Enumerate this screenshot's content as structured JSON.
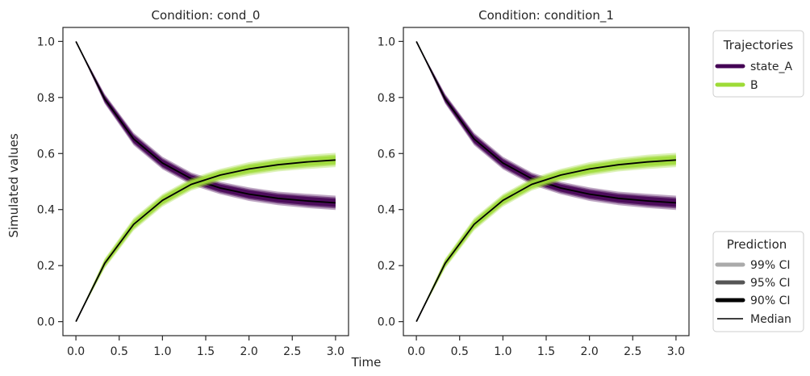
{
  "figure": {
    "ylabel": "Simulated values",
    "xlabel": "Time"
  },
  "colors": {
    "state_A": "#440154",
    "B": "#9edb37",
    "median": "#000000",
    "ci99": "#aaaaaa",
    "ci95": "#555555",
    "ci90": "#000000"
  },
  "legend_trajectories": {
    "title": "Trajectories",
    "items": [
      "state_A",
      "B"
    ]
  },
  "legend_prediction": {
    "title": "Prediction",
    "items": [
      "99% CI",
      "95% CI",
      "90% CI",
      "Median"
    ]
  },
  "chart_data": [
    {
      "type": "line",
      "title": "Condition: cond_0",
      "xlim": [
        -0.15,
        3.15
      ],
      "ylim": [
        -0.05,
        1.05
      ],
      "xticks": [
        0.0,
        0.5,
        1.0,
        1.5,
        2.0,
        2.5,
        3.0
      ],
      "xtick_labels": [
        "0.0",
        "0.5",
        "1.0",
        "1.5",
        "2.0",
        "2.5",
        "3.0"
      ],
      "yticks": [
        0.0,
        0.2,
        0.4,
        0.6,
        0.8,
        1.0
      ],
      "ytick_labels": [
        "0.0",
        "0.2",
        "0.4",
        "0.6",
        "0.8",
        "1.0"
      ],
      "x": [
        0.0,
        0.333,
        0.667,
        1.0,
        1.333,
        1.667,
        2.0,
        2.333,
        2.667,
        3.0
      ],
      "series": [
        {
          "name": "state_A",
          "median": [
            1.0,
            0.795,
            0.652,
            0.566,
            0.51,
            0.477,
            0.455,
            0.44,
            0.431,
            0.424
          ],
          "band_halfwidth": [
            0.0,
            0.012,
            0.015,
            0.015,
            0.015,
            0.015,
            0.016,
            0.016,
            0.017,
            0.017
          ]
        },
        {
          "name": "B",
          "median": [
            0.0,
            0.208,
            0.347,
            0.433,
            0.49,
            0.523,
            0.545,
            0.56,
            0.57,
            0.577
          ],
          "band_halfwidth": [
            0.0,
            0.012,
            0.015,
            0.015,
            0.015,
            0.015,
            0.016,
            0.016,
            0.017,
            0.017
          ]
        }
      ]
    },
    {
      "type": "line",
      "title": "Condition: condition_1",
      "xlim": [
        -0.15,
        3.15
      ],
      "ylim": [
        -0.05,
        1.05
      ],
      "xticks": [
        0.0,
        0.5,
        1.0,
        1.5,
        2.0,
        2.5,
        3.0
      ],
      "xtick_labels": [
        "0.0",
        "0.5",
        "1.0",
        "1.5",
        "2.0",
        "2.5",
        "3.0"
      ],
      "yticks": [
        0.0,
        0.2,
        0.4,
        0.6,
        0.8,
        1.0
      ],
      "ytick_labels": [
        "0.0",
        "0.2",
        "0.4",
        "0.6",
        "0.8",
        "1.0"
      ],
      "x": [
        0.0,
        0.333,
        0.667,
        1.0,
        1.333,
        1.667,
        2.0,
        2.333,
        2.667,
        3.0
      ],
      "series": [
        {
          "name": "state_A",
          "median": [
            1.0,
            0.795,
            0.652,
            0.566,
            0.51,
            0.477,
            0.455,
            0.44,
            0.431,
            0.424
          ],
          "band_halfwidth": [
            0.0,
            0.012,
            0.015,
            0.015,
            0.015,
            0.015,
            0.016,
            0.016,
            0.017,
            0.017
          ]
        },
        {
          "name": "B",
          "median": [
            0.0,
            0.208,
            0.347,
            0.433,
            0.49,
            0.523,
            0.545,
            0.56,
            0.57,
            0.577
          ],
          "band_halfwidth": [
            0.0,
            0.012,
            0.015,
            0.015,
            0.015,
            0.015,
            0.016,
            0.016,
            0.017,
            0.017
          ]
        }
      ]
    }
  ]
}
